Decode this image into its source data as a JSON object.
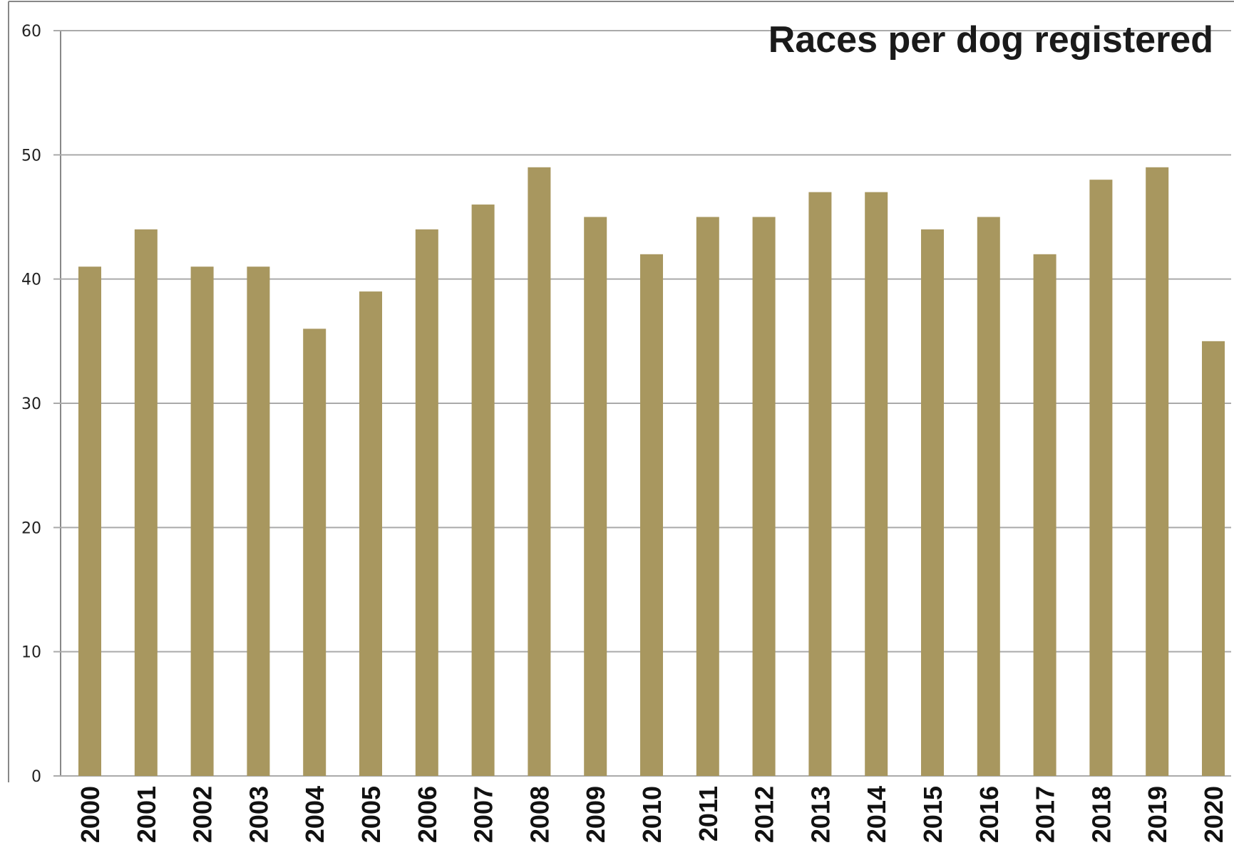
{
  "chart_data": {
    "type": "bar",
    "title": "Races per dog registered",
    "xlabel": "",
    "ylabel": "",
    "categories": [
      "2000",
      "2001",
      "2002",
      "2003",
      "2004",
      "2005",
      "2006",
      "2007",
      "2008",
      "2009",
      "2010",
      "2011",
      "2012",
      "2013",
      "2014",
      "2015",
      "2016",
      "2017",
      "2018",
      "2019",
      "2020"
    ],
    "values": [
      41,
      44,
      41,
      41,
      36,
      39,
      44,
      46,
      49,
      45,
      42,
      45,
      45,
      47,
      47,
      44,
      45,
      42,
      48,
      49,
      35
    ],
    "ylim": [
      0,
      60
    ],
    "yticks": [
      "0",
      "10",
      "20",
      "30",
      "40",
      "50",
      "60"
    ],
    "grid": true,
    "legend": "none",
    "colors": {
      "bar": "#a8975f",
      "grid": "#aaaaaa",
      "axis": "#888888"
    }
  }
}
